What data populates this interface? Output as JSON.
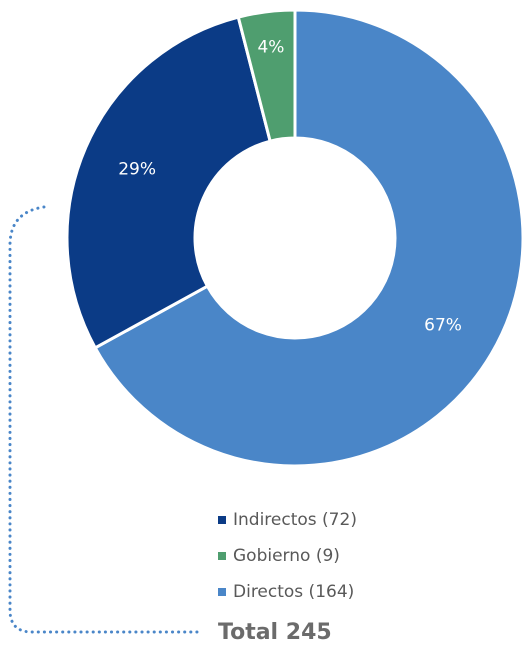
{
  "chart_data": {
    "type": "donut",
    "categories": [
      "Indirectos (72)",
      "Gobierno (9)",
      "Directos (164)"
    ],
    "values": [
      29,
      4,
      67
    ],
    "value_labels": [
      "29%",
      "4%",
      "67%"
    ],
    "colors": [
      "#0b3b86",
      "#4f9e6f",
      "#4a86c8"
    ],
    "annotation": "Total 245"
  }
}
